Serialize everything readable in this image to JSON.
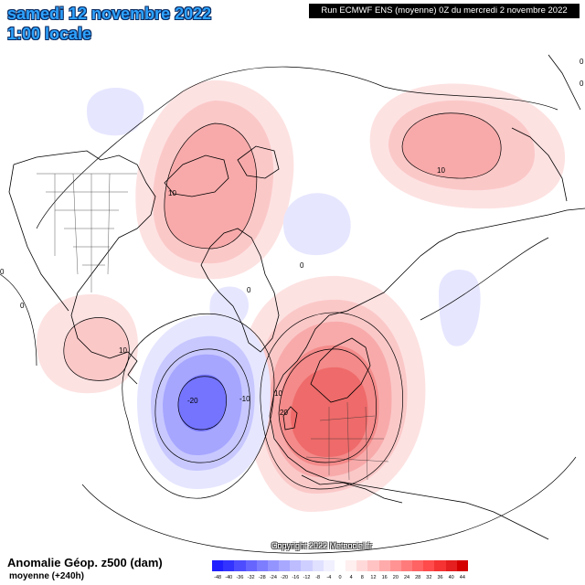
{
  "header": {
    "date": "samedi 12 novembre 2022",
    "time": "1:00 locale",
    "run": "Run ECMWF ENS (moyenne) 0Z du mercredi 2 novembre 2022"
  },
  "footer": {
    "title": "Anomalie Géop. z500 (dam)",
    "subtitle": "moyenne   (+240h)",
    "copyright": "Copyright 2022 Meteociel.fr"
  },
  "scale": {
    "labels": [
      "-48",
      "-40",
      "-36",
      "-32",
      "-28",
      "-24",
      "-20",
      "-16",
      "-12",
      "-8",
      "-4",
      "0",
      "4",
      "8",
      "12",
      "16",
      "20",
      "24",
      "28",
      "32",
      "36",
      "40",
      "44"
    ],
    "colors": [
      "#1f1fff",
      "#3333ff",
      "#4d4dff",
      "#6666ff",
      "#7d7dff",
      "#9494ff",
      "#a8a8ff",
      "#bcbcff",
      "#cfcfff",
      "#e0e0ff",
      "#f0f0ff",
      "#ffffff",
      "#ffefef",
      "#ffd9d9",
      "#ffc3c3",
      "#ffabab",
      "#ff9393",
      "#ff7b7b",
      "#ff6363",
      "#ff4b4b",
      "#f53333",
      "#e51f1f",
      "#d40000"
    ]
  },
  "map_labels": [
    {
      "id": "na-pos-high",
      "text": "10"
    },
    {
      "id": "ne-pos-high",
      "text": "10"
    },
    {
      "id": "atl-neg-low",
      "text": "-20"
    },
    {
      "id": "atl-neg-ring",
      "text": "-10"
    },
    {
      "id": "eu-ring-10",
      "text": "10"
    },
    {
      "id": "eu-ring-20",
      "text": "20"
    },
    {
      "id": "usa-pos",
      "text": "10"
    },
    {
      "id": "zero-1",
      "text": "0"
    },
    {
      "id": "zero-2",
      "text": "0"
    },
    {
      "id": "zero-3",
      "text": "0"
    },
    {
      "id": "zero-4",
      "text": "0"
    },
    {
      "id": "zero-5",
      "text": "0"
    },
    {
      "id": "zero-6",
      "text": "0"
    }
  ]
}
